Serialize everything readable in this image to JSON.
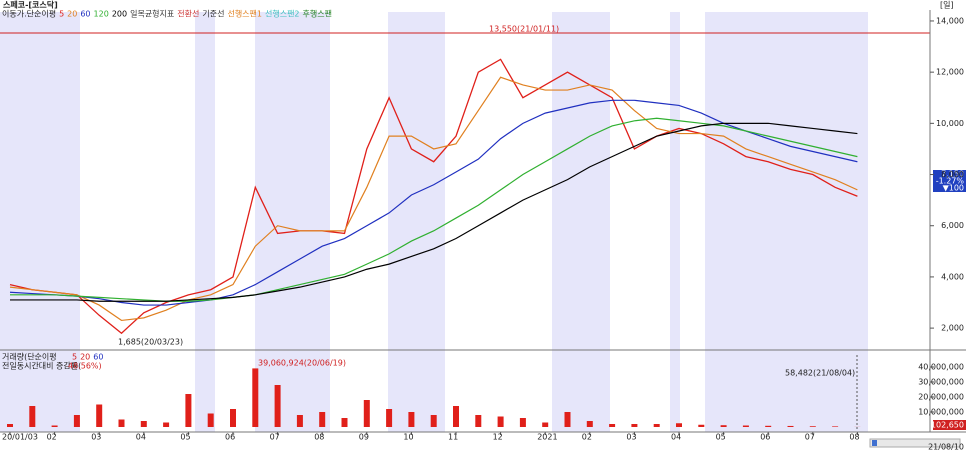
{
  "chart_data": [
    {
      "type": "line",
      "title": "스페코-[코스닥]",
      "period": "[일]",
      "legend_label": "이동가.단순이평",
      "indicators": [
        {
          "name": "일목균형지표",
          "color": "#333333"
        },
        {
          "name": "전환선",
          "color": "#cc3333"
        },
        {
          "name": "기준선",
          "color": "#333333"
        },
        {
          "name": "선행스팬1",
          "color": "#e08020"
        },
        {
          "name": "선행스팬2",
          "color": "#40c0c0"
        },
        {
          "name": "후행스팬",
          "color": "#208020"
        }
      ],
      "categories": [
        "20/01/03",
        null,
        "02",
        null,
        "03",
        null,
        "04",
        null,
        "05",
        null,
        "06",
        null,
        "07",
        null,
        "08",
        null,
        "09",
        null,
        "10",
        null,
        "11",
        null,
        "12",
        null,
        "2021",
        null,
        "02",
        null,
        "03",
        null,
        "04",
        null,
        "05",
        null,
        "06",
        null,
        "07",
        null,
        "08"
      ],
      "series": [
        {
          "name": "5",
          "color": "#e0201a",
          "values": [
            3700,
            3500,
            3400,
            3300,
            2500,
            1800,
            2600,
            3000,
            3300,
            3500,
            4000,
            7500,
            5700,
            5800,
            5800,
            5700,
            9000,
            11000,
            9000,
            8500,
            9500,
            12000,
            12500,
            11000,
            11500,
            12000,
            11500,
            11000,
            9000,
            9500,
            9800,
            9600,
            9200,
            8700,
            8500,
            8200,
            8000,
            7500,
            7150
          ]
        },
        {
          "name": "20",
          "color": "#e08020",
          "values": [
            3600,
            3500,
            3400,
            3300,
            2900,
            2300,
            2400,
            2700,
            3100,
            3300,
            3700,
            5200,
            6000,
            5800,
            5800,
            5800,
            7500,
            9500,
            9500,
            9000,
            9200,
            10500,
            11800,
            11500,
            11300,
            11300,
            11500,
            11300,
            10500,
            9800,
            9600,
            9600,
            9500,
            9000,
            8700,
            8400,
            8100,
            7800,
            7400
          ]
        },
        {
          "name": "60",
          "color": "#2030c0",
          "values": [
            3400,
            3350,
            3300,
            3250,
            3150,
            3000,
            2900,
            2900,
            3000,
            3100,
            3300,
            3700,
            4200,
            4700,
            5200,
            5500,
            6000,
            6500,
            7200,
            7600,
            8100,
            8600,
            9400,
            10000,
            10400,
            10600,
            10800,
            10900,
            10900,
            10800,
            10700,
            10400,
            10000,
            9700,
            9400,
            9100,
            8900,
            8700,
            8500
          ]
        },
        {
          "name": "120",
          "color": "#30b030",
          "values": [
            3300,
            3300,
            3300,
            3250,
            3200,
            3150,
            3100,
            3050,
            3050,
            3100,
            3200,
            3300,
            3500,
            3700,
            3900,
            4100,
            4500,
            4900,
            5400,
            5800,
            6300,
            6800,
            7400,
            8000,
            8500,
            9000,
            9500,
            9900,
            10100,
            10200,
            10100,
            10000,
            9900,
            9700,
            9500,
            9300,
            9100,
            8900,
            8700
          ]
        },
        {
          "name": "200",
          "color": "#000000",
          "values": [
            3100,
            3100,
            3100,
            3100,
            3050,
            3050,
            3050,
            3050,
            3100,
            3150,
            3200,
            3300,
            3450,
            3600,
            3800,
            4000,
            4300,
            4500,
            4800,
            5100,
            5500,
            6000,
            6500,
            7000,
            7400,
            7800,
            8300,
            8700,
            9100,
            9500,
            9700,
            9900,
            10000,
            10000,
            10000,
            9900,
            9800,
            9700,
            9600
          ]
        }
      ],
      "ylim": [
        1340,
        14350
      ],
      "yticks": [
        {
          "value": 2000,
          "label": "2,000"
        },
        {
          "value": 4000,
          "label": "4,000"
        },
        {
          "value": 6000,
          "label": "6,000"
        },
        {
          "value": 8000,
          "label": "8,000"
        },
        {
          "value": 10000,
          "label": "10,000"
        },
        {
          "value": 12000,
          "label": "12,000"
        },
        {
          "value": 14000,
          "label": "14,000"
        }
      ],
      "annotations": [
        "13,550(21/01/11)",
        "1,685(20/03/23)"
      ],
      "price_labels": [
        "7,150",
        "-1.27%",
        "▼100"
      ]
    },
    {
      "type": "bar",
      "legend_label": "거래량(단순이평",
      "legend_periods": [
        "5",
        "20",
        "60"
      ],
      "change_label": "전일동시간대비 증감률(",
      "change_value": "48.56%)",
      "color": "#e0201a",
      "values": [
        2000000,
        14000000,
        1000000,
        8000000,
        15000000,
        5000000,
        4000000,
        3000000,
        22000000,
        9000000,
        12000000,
        39060924,
        28000000,
        8000000,
        10000000,
        6000000,
        18000000,
        12000000,
        10000000,
        8000000,
        14000000,
        8000000,
        7000000,
        6000000,
        3000000,
        10000000,
        4000000,
        2000000,
        2000000,
        2000000,
        2500000,
        1500000,
        1200000,
        1000000,
        800000,
        700000,
        500000,
        400000,
        58482
      ],
      "ylim": [
        0,
        50000000
      ],
      "yticks": [
        {
          "value": 10000000,
          "label": "10,000,000"
        },
        {
          "value": 20000000,
          "label": "20,000,000"
        },
        {
          "value": 30000000,
          "label": "30,000,000"
        },
        {
          "value": 40000000,
          "label": "40,000,000"
        }
      ],
      "annotations": [
        "39,060,924(20/06/19)",
        "58,482(21/08/04)"
      ],
      "current_label": "102,650",
      "end_label": "21/08/10"
    }
  ]
}
